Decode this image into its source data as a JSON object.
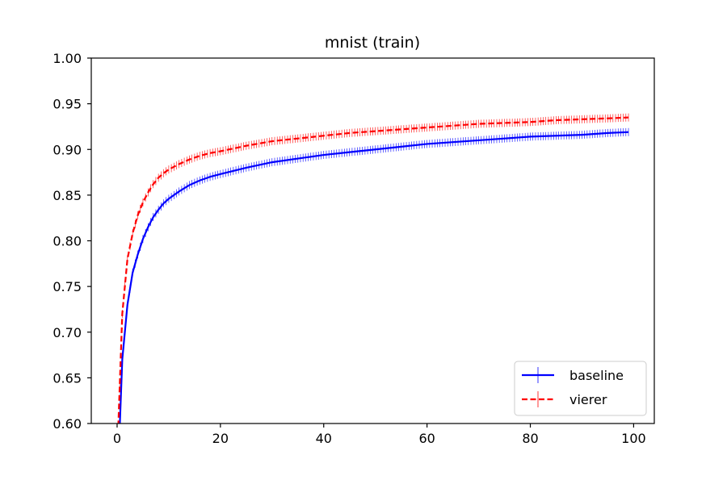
{
  "chart_data": {
    "type": "line",
    "title": "mnist (train)",
    "xlabel": "",
    "ylabel": "",
    "xlim": [
      -5,
      104
    ],
    "ylim": [
      0.6,
      1.0
    ],
    "x_ticks": [
      "0",
      "20",
      "40",
      "60",
      "80",
      "100"
    ],
    "y_ticks": [
      "0.60",
      "0.65",
      "0.70",
      "0.75",
      "0.80",
      "0.85",
      "0.90",
      "0.95",
      "1.00"
    ],
    "grid": false,
    "legend_position": "lower-right",
    "x": [
      0,
      1,
      2,
      3,
      4,
      5,
      6,
      7,
      8,
      9,
      10,
      12,
      14,
      16,
      18,
      20,
      25,
      30,
      35,
      40,
      45,
      50,
      55,
      60,
      65,
      70,
      75,
      80,
      85,
      90,
      95,
      99
    ],
    "series": [
      {
        "name": "baseline",
        "color": "#0000ff",
        "style": "solid",
        "errorbars": true,
        "values": [
          0.52,
          0.67,
          0.73,
          0.765,
          0.785,
          0.802,
          0.815,
          0.826,
          0.834,
          0.841,
          0.846,
          0.854,
          0.861,
          0.866,
          0.87,
          0.873,
          0.88,
          0.886,
          0.89,
          0.894,
          0.897,
          0.9,
          0.903,
          0.906,
          0.908,
          0.91,
          0.912,
          0.914,
          0.915,
          0.916,
          0.918,
          0.919
        ]
      },
      {
        "name": "vierer",
        "color": "#ff0000",
        "style": "dashed",
        "errorbars": true,
        "values": [
          0.56,
          0.72,
          0.78,
          0.808,
          0.828,
          0.842,
          0.853,
          0.862,
          0.869,
          0.874,
          0.878,
          0.884,
          0.889,
          0.893,
          0.896,
          0.898,
          0.904,
          0.909,
          0.912,
          0.915,
          0.918,
          0.92,
          0.922,
          0.924,
          0.926,
          0.928,
          0.929,
          0.93,
          0.932,
          0.933,
          0.934,
          0.935
        ]
      }
    ]
  }
}
